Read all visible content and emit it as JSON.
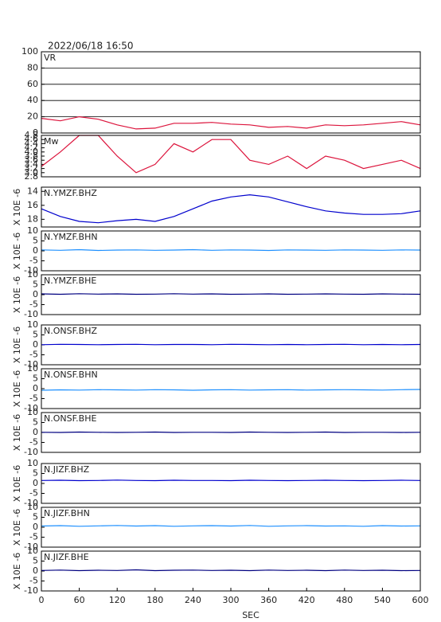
{
  "timestamp": "2022/06/18 16:50",
  "chart_data": [
    {
      "type": "line",
      "title": "VR",
      "x": [
        0,
        30,
        60,
        90,
        120,
        150,
        180,
        210,
        240,
        270,
        300,
        330,
        360,
        390,
        420,
        450,
        480,
        510,
        540,
        570,
        600
      ],
      "values": [
        18,
        15,
        20,
        17,
        10,
        5,
        6,
        12,
        12,
        13,
        11,
        10,
        7,
        8,
        6,
        10,
        9,
        10,
        12,
        14,
        10
      ],
      "color": "#dc143c",
      "xlim": [
        0,
        600
      ],
      "ylim": [
        0,
        100
      ],
      "yticks": [
        0,
        20,
        40,
        60,
        80,
        100
      ],
      "grid": true
    },
    {
      "type": "line",
      "title": "Mw",
      "x": [
        0,
        30,
        60,
        90,
        120,
        150,
        180,
        210,
        240,
        270,
        300,
        330,
        360,
        390,
        420,
        450,
        480,
        510,
        540,
        570,
        600
      ],
      "values": [
        3.3,
        4.0,
        4.8,
        4.8,
        3.8,
        3.0,
        3.4,
        4.4,
        4.0,
        4.6,
        4.6,
        3.6,
        3.4,
        3.8,
        3.2,
        3.8,
        3.6,
        3.2,
        3.4,
        3.6,
        3.2
      ],
      "color": "#dc143c",
      "xlim": [
        0,
        600
      ],
      "ylim": [
        2.8,
        4.8
      ],
      "yticks": [
        2.8,
        {
          "value": 3,
          "label": "3.0"
        },
        3.2,
        3.4,
        3.6,
        3.8,
        {
          "value": 4,
          "label": "4.0"
        },
        4.2,
        4.4,
        4.6,
        4.8
      ]
    },
    {
      "type": "line",
      "title": "N.YMZF.BHZ",
      "ylabel": "X 10E -6",
      "x": [
        0,
        30,
        60,
        90,
        120,
        150,
        180,
        210,
        240,
        270,
        300,
        330,
        360,
        390,
        420,
        450,
        480,
        510,
        540,
        570,
        600
      ],
      "values": [
        16.5,
        17.6,
        18.3,
        18.5,
        18.2,
        18,
        18.3,
        17.6,
        16.5,
        15.4,
        14.8,
        14.5,
        14.8,
        15.5,
        16.2,
        16.8,
        17.1,
        17.3,
        17.3,
        17.2,
        16.8
      ],
      "color": "#0000cd",
      "xlim": [
        0,
        600
      ],
      "ylim": [
        19.1,
        13.4
      ],
      "yticks": [
        14,
        16,
        18
      ]
    },
    {
      "type": "line",
      "title": "N.YMZF.BHN",
      "ylabel": "X 10E -6",
      "x": [
        0,
        30,
        60,
        90,
        120,
        150,
        180,
        210,
        240,
        270,
        300,
        330,
        360,
        390,
        420,
        450,
        480,
        510,
        540,
        570,
        600
      ],
      "values": [
        0.5,
        0.3,
        0.6,
        0.2,
        0.4,
        0.5,
        0.3,
        0.4,
        0.6,
        0.3,
        0.5,
        0.4,
        0.2,
        0.5,
        0.4,
        0.3,
        0.5,
        0.4,
        0.3,
        0.5,
        0.4
      ],
      "color": "#1e90ff",
      "xlim": [
        0,
        600
      ],
      "ylim": [
        -10,
        10
      ],
      "yticks": [
        -10,
        -5,
        0,
        5,
        10
      ]
    },
    {
      "type": "line",
      "title": "N.YMZF.BHE",
      "ylabel": "X 10E -6",
      "x": [
        0,
        30,
        60,
        90,
        120,
        150,
        180,
        210,
        240,
        270,
        300,
        330,
        360,
        390,
        420,
        450,
        480,
        510,
        540,
        570,
        600
      ],
      "values": [
        0.4,
        0.2,
        0.5,
        0.3,
        0.4,
        0.2,
        0.3,
        0.5,
        0.3,
        0.4,
        0.2,
        0.3,
        0.4,
        0.2,
        0.3,
        0.4,
        0.3,
        0.2,
        0.4,
        0.3,
        0.2
      ],
      "color": "#000080",
      "xlim": [
        0,
        600
      ],
      "ylim": [
        -10,
        10
      ],
      "yticks": [
        -10,
        -5,
        0,
        5,
        10
      ]
    },
    {
      "type": "line",
      "title": "N.ONSF.BHZ",
      "ylabel": "X 10E -6",
      "x": [
        0,
        30,
        60,
        90,
        120,
        150,
        180,
        210,
        240,
        270,
        300,
        330,
        360,
        390,
        420,
        450,
        480,
        510,
        540,
        570,
        600
      ],
      "values": [
        0.1,
        0.3,
        0.2,
        0.1,
        0.2,
        0.3,
        0.1,
        0.2,
        0.2,
        0.1,
        0.3,
        0.2,
        0.1,
        0.2,
        0.1,
        0.2,
        0.3,
        0.1,
        0.2,
        0.1,
        0.2
      ],
      "color": "#0000cd",
      "xlim": [
        0,
        600
      ],
      "ylim": [
        -10,
        10
      ],
      "yticks": [
        -10,
        -5,
        0,
        5,
        10
      ]
    },
    {
      "type": "line",
      "title": "N.ONSF.BHN",
      "ylabel": "X 10E -6",
      "x": [
        0,
        30,
        60,
        90,
        120,
        150,
        180,
        210,
        240,
        270,
        300,
        330,
        360,
        390,
        420,
        450,
        480,
        510,
        540,
        570,
        600
      ],
      "values": [
        -0.8,
        -0.6,
        -0.7,
        -0.5,
        -0.6,
        -0.7,
        -0.5,
        -0.6,
        -0.8,
        -0.6,
        -0.5,
        -0.7,
        -0.6,
        -0.5,
        -0.7,
        -0.6,
        -0.5,
        -0.6,
        -0.7,
        -0.5,
        -0.4
      ],
      "color": "#1e90ff",
      "xlim": [
        0,
        600
      ],
      "ylim": [
        -10,
        10
      ],
      "yticks": [
        -10,
        -5,
        0,
        5,
        10
      ]
    },
    {
      "type": "line",
      "title": "N.ONSF.BHE",
      "ylabel": "X 10E -6",
      "x": [
        0,
        30,
        60,
        90,
        120,
        150,
        180,
        210,
        240,
        270,
        300,
        330,
        360,
        390,
        420,
        450,
        480,
        510,
        540,
        570,
        600
      ],
      "values": [
        0.1,
        0.0,
        0.2,
        0.1,
        0.0,
        0.1,
        0.2,
        0.0,
        0.1,
        0.1,
        0.0,
        0.2,
        0.1,
        0.0,
        0.1,
        0.2,
        0.0,
        0.1,
        0.1,
        0.0,
        0.1
      ],
      "color": "#000080",
      "xlim": [
        0,
        600
      ],
      "ylim": [
        -10,
        10
      ],
      "yticks": [
        -10,
        -5,
        0,
        5,
        10
      ]
    },
    {
      "type": "line",
      "title": "N.JIZF.BHZ",
      "ylabel": "X 10E -6",
      "x": [
        0,
        30,
        60,
        90,
        120,
        150,
        180,
        210,
        240,
        270,
        300,
        330,
        360,
        390,
        420,
        450,
        480,
        510,
        540,
        570,
        600
      ],
      "values": [
        1.5,
        1.6,
        1.4,
        1.5,
        1.7,
        1.5,
        1.4,
        1.6,
        1.5,
        1.5,
        1.4,
        1.6,
        1.5,
        1.4,
        1.5,
        1.6,
        1.5,
        1.4,
        1.5,
        1.6,
        1.5
      ],
      "color": "#0000cd",
      "xlim": [
        0,
        600
      ],
      "ylim": [
        -10,
        10
      ],
      "yticks": [
        -10,
        -5,
        0,
        5,
        10
      ]
    },
    {
      "type": "line",
      "title": "N.JIZF.BHN",
      "ylabel": "X 10E -6",
      "x": [
        0,
        30,
        60,
        90,
        120,
        150,
        180,
        210,
        240,
        270,
        300,
        330,
        360,
        390,
        420,
        450,
        480,
        510,
        540,
        570,
        600
      ],
      "values": [
        0.6,
        0.8,
        0.5,
        0.7,
        0.9,
        0.6,
        0.8,
        0.5,
        0.7,
        0.8,
        0.6,
        0.9,
        0.5,
        0.7,
        0.8,
        0.6,
        0.7,
        0.5,
        0.8,
        0.6,
        0.7
      ],
      "color": "#1e90ff",
      "xlim": [
        0,
        600
      ],
      "ylim": [
        -10,
        10
      ],
      "yticks": [
        -10,
        -5,
        0,
        5,
        10
      ]
    },
    {
      "type": "line",
      "title": "N.JIZF.BHE",
      "ylabel": "X 10E -6",
      "x": [
        0,
        30,
        60,
        90,
        120,
        150,
        180,
        210,
        240,
        270,
        300,
        330,
        360,
        390,
        420,
        450,
        480,
        510,
        540,
        570,
        600
      ],
      "values": [
        0.3,
        0.5,
        0.2,
        0.4,
        0.3,
        0.6,
        0.2,
        0.4,
        0.5,
        0.3,
        0.4,
        0.2,
        0.5,
        0.3,
        0.4,
        0.2,
        0.5,
        0.3,
        0.4,
        0.2,
        0.3
      ],
      "color": "#000080",
      "xlim": [
        0,
        600
      ],
      "ylim": [
        -10,
        10
      ],
      "yticks": [
        -10,
        -5,
        0,
        5,
        10
      ],
      "xticks": [
        0,
        60,
        120,
        180,
        240,
        300,
        360,
        420,
        480,
        540,
        600
      ],
      "xlabel": "SEC"
    }
  ]
}
